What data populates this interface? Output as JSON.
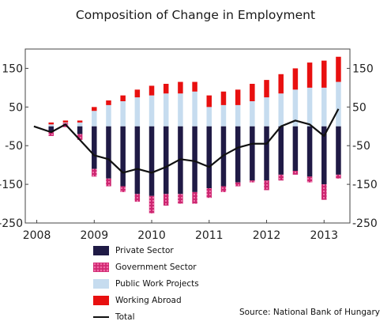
{
  "chart_data": {
    "type": "bar",
    "title": "Composition of Change in Employment",
    "source": "Source: National Bank of Hungary",
    "xlabel": "",
    "ylabel": "",
    "ylim": [
      -250,
      200
    ],
    "y_ticks": [
      "150",
      "50",
      "-50",
      "-150",
      "-250"
    ],
    "y_tick_values": [
      150,
      50,
      -50,
      -150,
      -250
    ],
    "x_ticks": [
      "2008",
      "2009",
      "2010",
      "2011",
      "2012",
      "2013"
    ],
    "x_tick_values": [
      2008,
      2009,
      2010,
      2011,
      2012,
      2013
    ],
    "x": [
      2008.25,
      2008.5,
      2008.75,
      2009.0,
      2009.25,
      2009.5,
      2009.75,
      2010.0,
      2010.25,
      2010.5,
      2010.75,
      2011.0,
      2011.25,
      2011.5,
      2011.75,
      2012.0,
      2012.25,
      2012.5,
      2012.75,
      2013.0,
      2013.25
    ],
    "stack_positive": [
      "Public Work Projects",
      "Working Abroad"
    ],
    "stack_negative": [
      "Private Sector",
      "Government Sector"
    ],
    "series": [
      {
        "name": "Private Sector",
        "type": "bar",
        "color": "#1f1a45",
        "values": [
          -15,
          8,
          -20,
          -110,
          -135,
          -155,
          -175,
          -180,
          -175,
          -175,
          -170,
          -160,
          -155,
          -145,
          -140,
          -140,
          -125,
          -115,
          -130,
          -150,
          -125
        ]
      },
      {
        "name": "Government Sector",
        "type": "bar",
        "color": "#d02a72",
        "values": [
          -10,
          -10,
          -15,
          -20,
          -20,
          -15,
          -20,
          -45,
          -30,
          -25,
          -30,
          -25,
          -15,
          -10,
          -5,
          -25,
          -15,
          -10,
          -15,
          -40,
          -10
        ]
      },
      {
        "name": "Public Work Projects",
        "type": "bar",
        "color": "#c6dcef",
        "values": [
          5,
          10,
          10,
          40,
          55,
          65,
          75,
          80,
          85,
          85,
          90,
          50,
          55,
          55,
          65,
          75,
          85,
          95,
          100,
          100,
          115
        ]
      },
      {
        "name": "Working Abroad",
        "type": "bar",
        "color": "#e81010",
        "values": [
          5,
          5,
          5,
          10,
          12,
          15,
          20,
          25,
          25,
          30,
          25,
          30,
          35,
          40,
          45,
          45,
          50,
          55,
          65,
          70,
          65
        ]
      },
      {
        "name": "Total",
        "type": "line",
        "color": "#111111",
        "values": [
          -15,
          5,
          -35,
          -75,
          -85,
          -120,
          -110,
          -120,
          -105,
          -85,
          -90,
          -105,
          -75,
          -55,
          -45,
          -45,
          0,
          15,
          5,
          -25,
          45
        ]
      }
    ],
    "line_start": {
      "x": 2007.95,
      "y": 0
    },
    "legend": [
      "Private Sector",
      "Government Sector",
      "Public Work Projects",
      "Working Abroad",
      "Total"
    ],
    "legend_position": "bottom-left",
    "grid": false
  }
}
